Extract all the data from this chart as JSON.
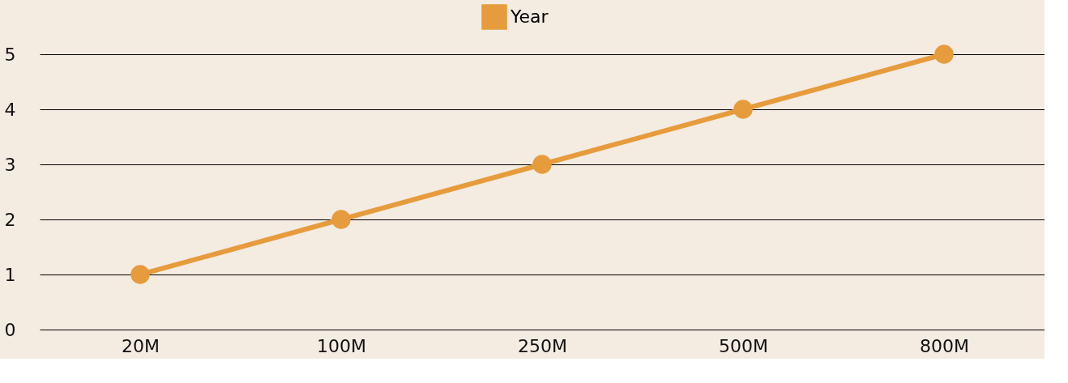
{
  "chart_data": {
    "type": "line",
    "categories": [
      "20M",
      "100M",
      "250M",
      "500M",
      "800M"
    ],
    "series": [
      {
        "name": "Year",
        "color": "#e69c3c",
        "values": [
          1,
          2,
          3,
          4,
          5
        ]
      }
    ],
    "ylim": [
      0,
      5
    ],
    "yticks": [
      0,
      1,
      2,
      3,
      4,
      5
    ],
    "grid": "y",
    "legend": "top",
    "marker": "circle",
    "line_style": "solid"
  }
}
